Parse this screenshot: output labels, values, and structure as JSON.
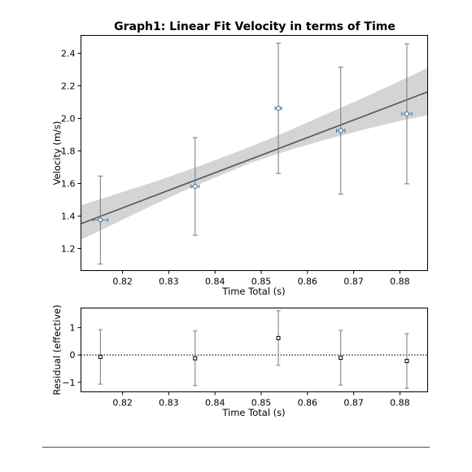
{
  "chart_data": [
    {
      "type": "scatter",
      "title": "Graph1: Linear Fit Velocity in terms of Time",
      "xlabel": "Time Total (s)",
      "ylabel": "Velocity (m/s)",
      "xlim": [
        0.811,
        0.886
      ],
      "ylim": [
        1.065,
        2.51
      ],
      "xticks": [
        0.82,
        0.83,
        0.84,
        0.85,
        0.86,
        0.87,
        0.88
      ],
      "xtick_labels": [
        "0.82",
        "0.83",
        "0.84",
        "0.85",
        "0.86",
        "0.87",
        "0.88"
      ],
      "yticks": [
        1.2,
        1.4,
        1.6,
        1.8,
        2.0,
        2.2,
        2.4
      ],
      "ytick_labels": [
        "1.2",
        "1.4",
        "1.6",
        "1.8",
        "2.0",
        "2.2",
        "2.4"
      ],
      "grid": false,
      "points": [
        {
          "x": 0.8152,
          "y": 1.376,
          "xerr": 0.0016,
          "yerr": 0.27
        },
        {
          "x": 0.8357,
          "y": 1.582,
          "xerr": 0.0009,
          "yerr": 0.3
        },
        {
          "x": 0.8537,
          "y": 2.062,
          "xerr": 0.0007,
          "yerr": 0.4
        },
        {
          "x": 0.8672,
          "y": 1.925,
          "xerr": 0.0009,
          "yerr": 0.39
        },
        {
          "x": 0.8815,
          "y": 2.028,
          "xerr": 0.0011,
          "yerr": 0.43
        }
      ],
      "fit_line": {
        "x": [
          0.811,
          0.886
        ],
        "y": [
          1.353,
          2.163
        ]
      },
      "confidence_band": {
        "x": [
          0.811,
          0.818,
          0.826,
          0.834,
          0.842,
          0.848,
          0.856,
          0.864,
          0.872,
          0.88,
          0.886
        ],
        "lower": [
          1.255,
          1.35,
          1.46,
          1.565,
          1.66,
          1.73,
          1.805,
          1.87,
          1.93,
          1.985,
          2.02
        ],
        "upper": [
          1.466,
          1.53,
          1.602,
          1.68,
          1.765,
          1.83,
          1.925,
          2.025,
          2.125,
          2.23,
          2.31
        ]
      },
      "colors": {
        "marker_edge": "#4a7fa8",
        "fit_line": "#555555",
        "band": "#cccccc",
        "errorbar": "#777777"
      }
    },
    {
      "type": "scatter",
      "title": "",
      "xlabel": "Time Total (s)",
      "ylabel": "Residual (effective)",
      "xlim": [
        0.811,
        0.886
      ],
      "ylim": [
        -1.35,
        1.72
      ],
      "xticks": [
        0.82,
        0.83,
        0.84,
        0.85,
        0.86,
        0.87,
        0.88
      ],
      "xtick_labels": [
        "0.82",
        "0.83",
        "0.84",
        "0.85",
        "0.86",
        "0.87",
        "0.88"
      ],
      "yticks": [
        -1,
        0,
        1
      ],
      "ytick_labels": [
        "−1",
        "0",
        "1"
      ],
      "grid": false,
      "zero_line": true,
      "points": [
        {
          "x": 0.8152,
          "y": -0.07,
          "yerr": 1.0
        },
        {
          "x": 0.8357,
          "y": -0.12,
          "yerr": 1.0
        },
        {
          "x": 0.8537,
          "y": 0.62,
          "yerr": 1.0
        },
        {
          "x": 0.8672,
          "y": -0.1,
          "yerr": 1.0
        },
        {
          "x": 0.8815,
          "y": -0.22,
          "yerr": 1.0
        }
      ],
      "colors": {
        "marker_edge": "#000000",
        "errorbar": "#777777"
      }
    }
  ]
}
